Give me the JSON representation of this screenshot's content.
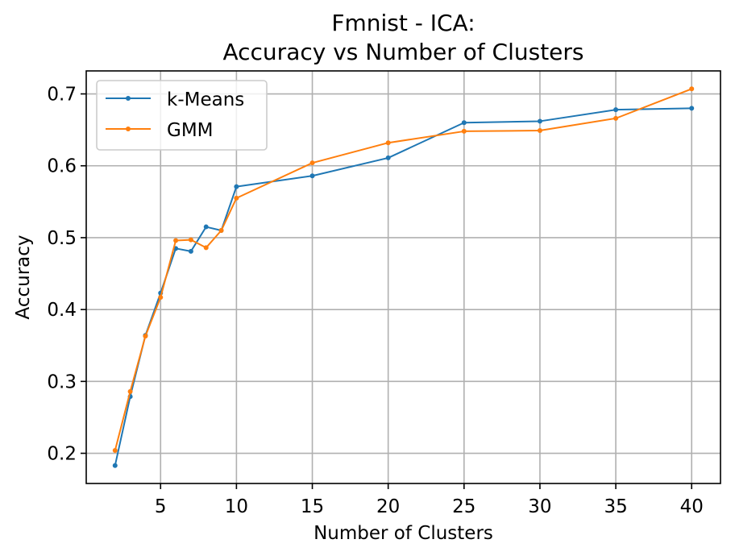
{
  "chart_data": {
    "type": "line",
    "title_lines": [
      "Fmnist - ICA:",
      "Accuracy vs Number of Clusters"
    ],
    "xlabel": "Number of Clusters",
    "ylabel": "Accuracy",
    "xlim": [
      0.1,
      41.9
    ],
    "ylim": [
      0.158,
      0.732
    ],
    "xticks": [
      5,
      10,
      15,
      20,
      25,
      30,
      35,
      40
    ],
    "yticks": [
      0.2,
      0.3,
      0.4,
      0.5,
      0.6,
      0.7
    ],
    "xtick_labels": [
      "5",
      "10",
      "15",
      "20",
      "25",
      "30",
      "35",
      "40"
    ],
    "ytick_labels": [
      "0.2",
      "0.3",
      "0.4",
      "0.5",
      "0.6",
      "0.7"
    ],
    "grid": true,
    "legend_position": "top-left",
    "x": [
      2,
      3,
      4,
      5,
      6,
      7,
      8,
      9,
      10,
      15,
      20,
      25,
      30,
      35,
      40
    ],
    "series": [
      {
        "name": "k-Means",
        "color": "#1f77b4",
        "values": [
          0.183,
          0.279,
          0.364,
          0.423,
          0.485,
          0.481,
          0.515,
          0.51,
          0.571,
          0.586,
          0.611,
          0.66,
          0.662,
          0.678,
          0.68
        ]
      },
      {
        "name": "GMM",
        "color": "#ff7f0e",
        "values": [
          0.204,
          0.286,
          0.363,
          0.417,
          0.496,
          0.497,
          0.486,
          0.51,
          0.555,
          0.604,
          0.632,
          0.648,
          0.649,
          0.666,
          0.707
        ]
      }
    ]
  }
}
